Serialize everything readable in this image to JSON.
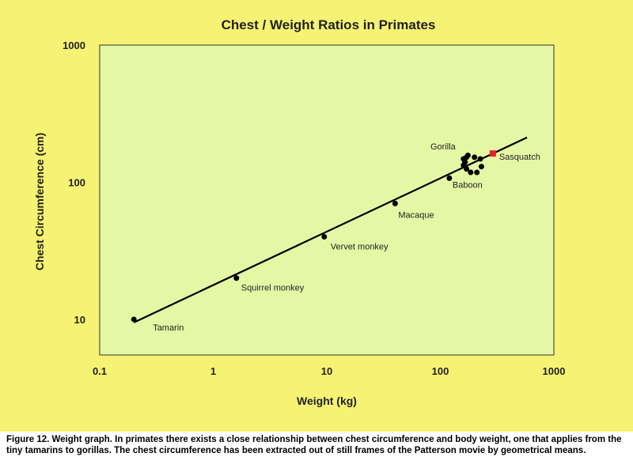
{
  "chart_data": {
    "type": "scatter",
    "title": "Chest / Weight Ratios in Primates",
    "xlabel": "Weight (kg)",
    "ylabel": "Chest Circumference (cm)",
    "xscale": "log",
    "yscale": "log",
    "xlim": [
      0.1,
      1000
    ],
    "ylim": [
      5.5,
      1000
    ],
    "xticks": [
      0.1,
      1,
      10,
      100,
      1000
    ],
    "xtick_labels": [
      "0.1",
      "1",
      "10",
      "100",
      "1000"
    ],
    "yticks": [
      10,
      100,
      1000
    ],
    "ytick_labels": [
      "10",
      "100",
      "1000"
    ],
    "grid": false,
    "background": "#e4f7a4",
    "fit_line": {
      "x": [
        0.2,
        580
      ],
      "y": [
        9.5,
        212
      ]
    },
    "points": [
      {
        "label": "Tamarin",
        "x": 0.2,
        "y": 10
      },
      {
        "label": "Squirrel monkey",
        "x": 1.6,
        "y": 20
      },
      {
        "label": "Vervet monkey",
        "x": 9.5,
        "y": 40
      },
      {
        "label": "Macaque",
        "x": 40,
        "y": 70
      },
      {
        "label": "Baboon",
        "x": 120,
        "y": 107
      }
    ],
    "gorilla_label": "Gorilla",
    "gorilla_points": [
      {
        "x": 160,
        "y": 148
      },
      {
        "x": 165,
        "y": 140
      },
      {
        "x": 170,
        "y": 152
      },
      {
        "x": 175,
        "y": 157
      },
      {
        "x": 160,
        "y": 133
      },
      {
        "x": 170,
        "y": 125
      },
      {
        "x": 185,
        "y": 118
      },
      {
        "x": 200,
        "y": 152
      },
      {
        "x": 210,
        "y": 118
      },
      {
        "x": 225,
        "y": 148
      },
      {
        "x": 230,
        "y": 130
      }
    ],
    "sasquatch": {
      "label": "Sasquatch",
      "x": 290,
      "y": 162
    },
    "colors": {
      "points": "#000000",
      "line": "#000000",
      "sasquatch": "#e8202a"
    }
  },
  "caption": "Figure 12.  Weight graph. In primates there exists a close relationship between chest circumference and body weight, one that applies from the tiny tamarins to gorillas. The chest circumference has been extracted out of still frames of the Patterson movie by geometrical means."
}
